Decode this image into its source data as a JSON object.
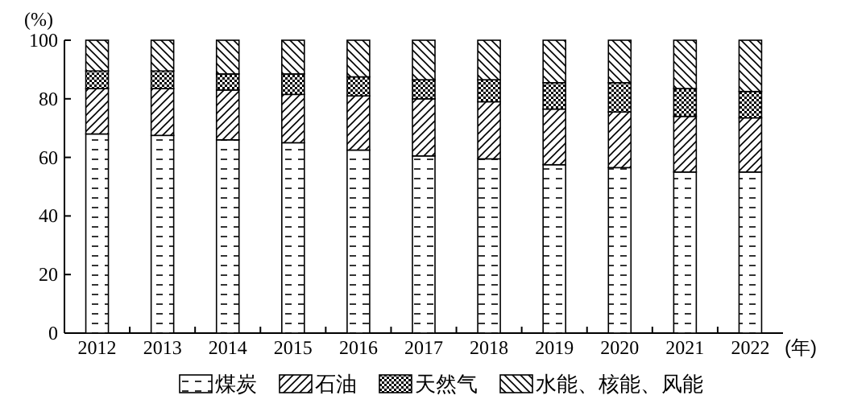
{
  "chart_data": {
    "type": "bar",
    "stacked": true,
    "ylabel": "(%)",
    "xlabel": "(年)",
    "categories": [
      "2012",
      "2013",
      "2014",
      "2015",
      "2016",
      "2017",
      "2018",
      "2019",
      "2020",
      "2021",
      "2022"
    ],
    "series": [
      {
        "name": "煤炭",
        "color": "#000000",
        "values": [
          68,
          67.5,
          66,
          65,
          62.5,
          60.5,
          59.5,
          57.5,
          56.5,
          55,
          55
        ]
      },
      {
        "name": "石油",
        "color": "#000000",
        "values": [
          15.5,
          16,
          17,
          16.5,
          18.5,
          19.5,
          19.5,
          19,
          19,
          19,
          18.5
        ]
      },
      {
        "name": "天然气",
        "color": "#000000",
        "values": [
          6,
          6,
          5.5,
          7,
          6.5,
          6.5,
          7.5,
          9,
          10,
          9.5,
          9
        ]
      },
      {
        "name": "水能、核能、风能",
        "color": "#000000",
        "values": [
          10.5,
          10.5,
          11.5,
          11.5,
          12.5,
          13.5,
          13.5,
          14.5,
          14.5,
          16.5,
          17.5
        ]
      }
    ],
    "ylim": [
      0,
      100
    ],
    "yticks": [
      0,
      20,
      40,
      60,
      80,
      100
    ],
    "grid": false,
    "legend": "bottom"
  }
}
